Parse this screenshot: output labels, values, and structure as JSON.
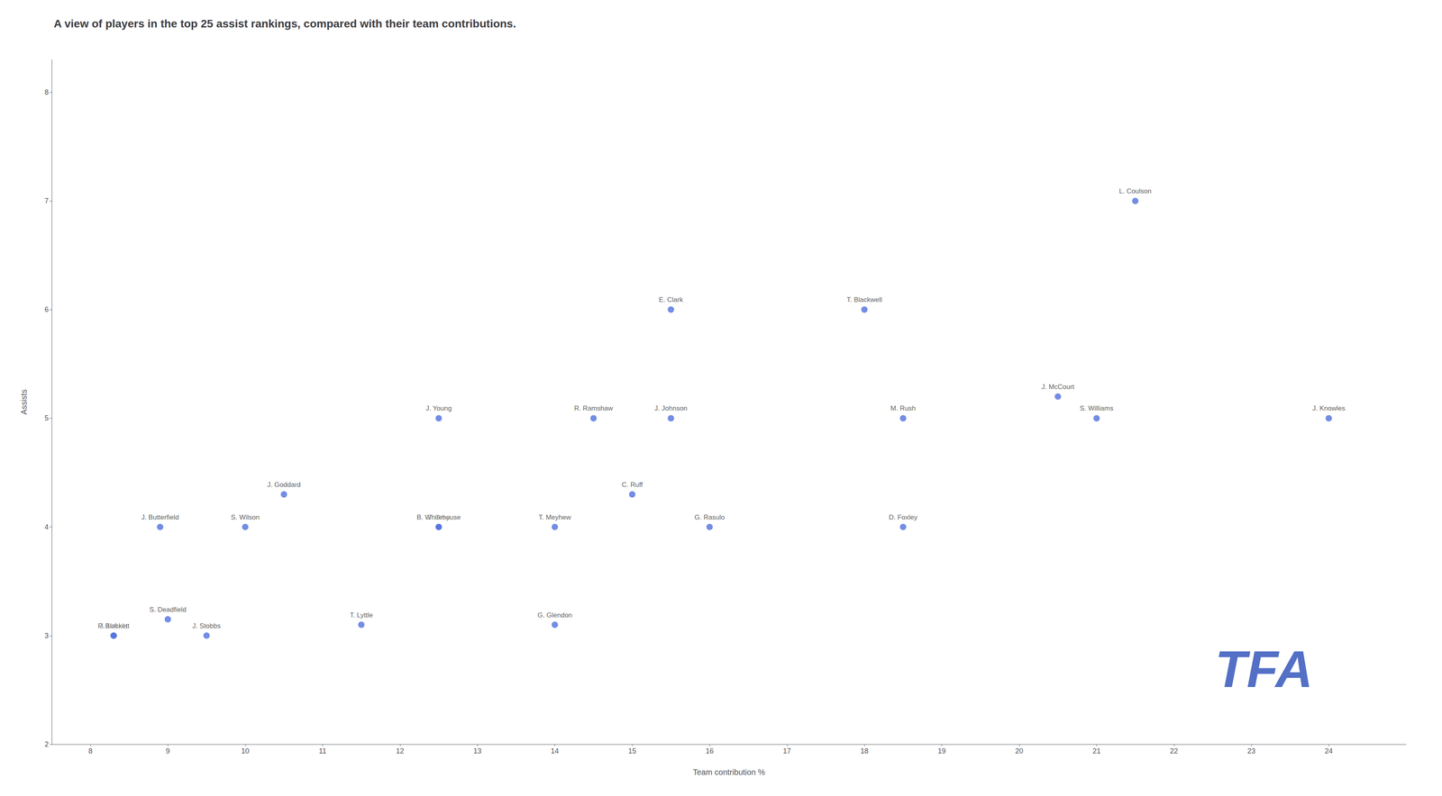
{
  "chart_data": {
    "type": "scatter",
    "title": "A view of players in the top 25 assist rankings, compared with their team contributions.",
    "x_label": "Team contribution %",
    "y_label": "Assists",
    "x": [
      8.3,
      8.3,
      9.0,
      9.5,
      8.9,
      10.0,
      10.5,
      11.5,
      12.5,
      12.5,
      12.5,
      14.5,
      14.0,
      14.0,
      15.5,
      15.5,
      15.0,
      16.0,
      18.0,
      18.5,
      18.5,
      20.5,
      21.0,
      21.5,
      24.0
    ],
    "values": [
      3.0,
      3.0,
      3.15,
      3.0,
      4.0,
      4.0,
      4.3,
      3.1,
      4.0,
      4.0,
      5.0,
      5.0,
      4.0,
      3.1,
      6.0,
      5.0,
      4.3,
      4.0,
      6.0,
      5.0,
      4.0,
      5.2,
      5.0,
      7.0,
      5.0
    ],
    "labels": [
      "J. Lufudu",
      "P. Blackett",
      "S. Deadfield",
      "J. Stobbs",
      "J. Butterfield",
      "S. Wilson",
      "J. Goddard",
      "T. Lyttle",
      "J. Gray",
      "B. Whitehouse",
      "J. Young",
      "R. Ramshaw",
      "T. Meyhew",
      "G. Glendon",
      "E. Clark",
      "J. Johnson",
      "C. Ruff",
      "G. Rasulo",
      "T. Blackwell",
      "M. Rush",
      "D. Foxley",
      "J. McCourt",
      "S. Williams",
      "L. Coulson",
      "J. Knowles"
    ],
    "xlim": [
      7.5,
      25.0
    ],
    "ylim": [
      2.0,
      8.3
    ],
    "xticks": [
      8,
      9,
      10,
      11,
      12,
      13,
      14,
      15,
      16,
      17,
      18,
      19,
      20,
      21,
      22,
      23,
      24
    ],
    "yticks": [
      2,
      3,
      4,
      5,
      6,
      7,
      8
    ],
    "grid": false,
    "annotations": [
      "TFA"
    ]
  }
}
